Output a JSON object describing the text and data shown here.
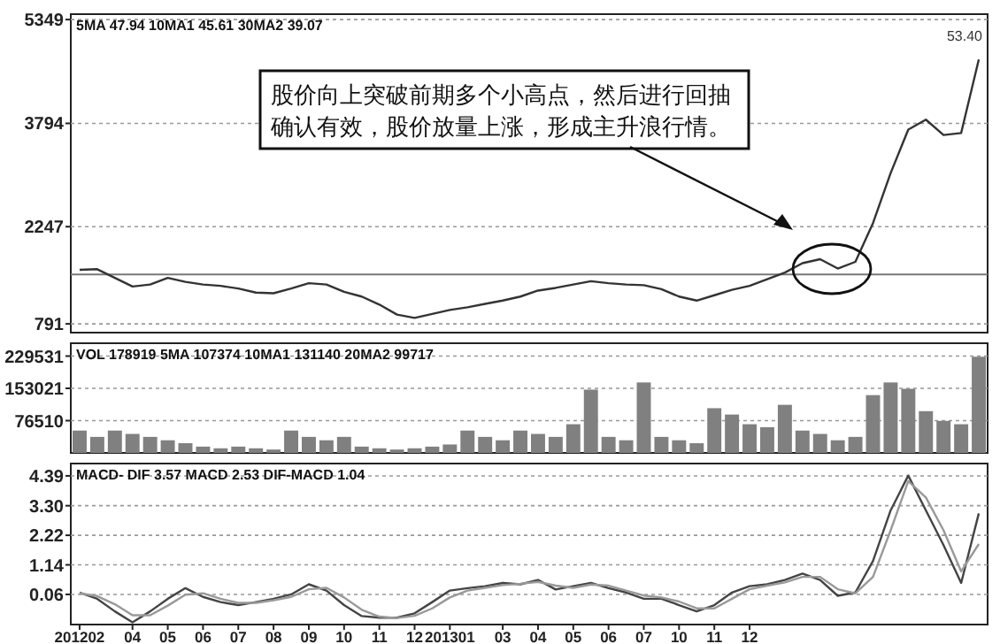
{
  "chart_data": [
    {
      "type": "line",
      "subtitle": "5MA 47.94  10MA1 45.61  30MA2 39.07",
      "categories": [
        null,
        null,
        null,
        null,
        null,
        null,
        null,
        null,
        null,
        null,
        null,
        null,
        null,
        null,
        null,
        null,
        null,
        null,
        null,
        null,
        null,
        null,
        null,
        null,
        null,
        null,
        null,
        null,
        null,
        null,
        null,
        null,
        null,
        null,
        null,
        null,
        null,
        null,
        null,
        null,
        null,
        null,
        null,
        null,
        null,
        null,
        null,
        null,
        null,
        null,
        null,
        null
      ],
      "series": [
        {
          "color": "#333333",
          "values": [
            1600,
            1610,
            1480,
            1350,
            1380,
            1480,
            1420,
            1380,
            1360,
            1320,
            1260,
            1250,
            1320,
            1400,
            1380,
            1270,
            1200,
            1080,
            930,
            880,
            940,
            1000,
            1040,
            1090,
            1140,
            1200,
            1290,
            1330,
            1380,
            1430,
            1400,
            1380,
            1370,
            1310,
            1200,
            1140,
            1220,
            1300,
            1360,
            1460,
            1560,
            1700,
            1760,
            1620,
            1720,
            2300,
            3050,
            3700,
            3850,
            3620,
            3650,
            4750
          ]
        }
      ],
      "ylim": [
        660,
        5430
      ],
      "yticks": [
        791,
        2247,
        3794,
        5349
      ],
      "grid": "y",
      "line_style": "solid",
      "tick_labels": "y",
      "ref_lines": [
        {
          "axis": "y",
          "value": 1530,
          "color": "#777777"
        }
      ],
      "annotations": [
        "股价向上突破前期多个小高点，然后进行回抽确认有效，股价放量上涨，形成主升浪行情。",
        "53.40"
      ]
    },
    {
      "type": "bar",
      "subtitle": "VOL 178919  5MA 107374  10MA1 131140  20MA2 99717",
      "categories": [
        null,
        null,
        null,
        null,
        null,
        null,
        null,
        null,
        null,
        null,
        null,
        null,
        null,
        null,
        null,
        null,
        null,
        null,
        null,
        null,
        null,
        null,
        null,
        null,
        null,
        null,
        null,
        null,
        null,
        null,
        null,
        null,
        null,
        null,
        null,
        null,
        null,
        null,
        null,
        null,
        null,
        null,
        null,
        null,
        null,
        null,
        null,
        null,
        null,
        null,
        null,
        null
      ],
      "series": [
        {
          "color": "#808080",
          "values": [
            53000,
            38000,
            53000,
            45000,
            38000,
            30000,
            23000,
            15000,
            11000,
            15000,
            11000,
            8000,
            53000,
            38000,
            30000,
            38000,
            15000,
            11000,
            8000,
            11000,
            15000,
            20000,
            53000,
            38000,
            30000,
            53000,
            45000,
            38000,
            68000,
            150000,
            38000,
            30000,
            167000,
            38000,
            30000,
            23000,
            106000,
            91000,
            68000,
            61000,
            114000,
            53000,
            45000,
            30000,
            38000,
            137000,
            167000,
            152000,
            99000,
            76000,
            68000,
            228000
          ]
        }
      ],
      "ylim": [
        0,
        260000
      ],
      "yticks": [
        76510,
        153021,
        229531
      ],
      "grid": "y",
      "tick_labels": "y"
    },
    {
      "type": "line",
      "subtitle": "MACD- DIF 3.57  MACD 2.53  DIF-MACD 1.04",
      "categories": [
        "201202",
        null,
        null,
        "04",
        null,
        "05",
        null,
        "06",
        null,
        "07",
        null,
        "08",
        null,
        "09",
        null,
        "10",
        null,
        "11",
        null,
        "12",
        null,
        "201301",
        null,
        null,
        "03",
        null,
        "04",
        null,
        "05",
        null,
        "06",
        null,
        "07",
        null,
        "10",
        null,
        "11",
        null,
        "12",
        null,
        null,
        null,
        null,
        null,
        null,
        null,
        null,
        null,
        null,
        null,
        null,
        null
      ],
      "series": [
        {
          "color": "#444444",
          "values": [
            0.13,
            -0.1,
            -0.56,
            -0.96,
            -0.56,
            -0.1,
            0.29,
            -0.03,
            -0.22,
            -0.33,
            -0.22,
            -0.1,
            0.06,
            0.43,
            0.2,
            -0.33,
            -0.73,
            -0.79,
            -0.79,
            -0.63,
            -0.22,
            0.2,
            0.29,
            0.36,
            0.48,
            0.43,
            0.59,
            0.24,
            0.36,
            0.48,
            0.29,
            0.13,
            -0.1,
            -0.1,
            -0.33,
            -0.56,
            -0.33,
            0.13,
            0.36,
            0.43,
            0.59,
            0.82,
            0.59,
            0.01,
            0.13,
            1.28,
            3.13,
            4.4,
            3.13,
            1.86,
            0.48,
            3.02
          ]
        },
        {
          "color": "#999999",
          "values": [
            0.1,
            0.0,
            -0.3,
            -0.7,
            -0.7,
            -0.35,
            0.05,
            0.1,
            -0.1,
            -0.25,
            -0.25,
            -0.15,
            -0.03,
            0.25,
            0.3,
            -0.05,
            -0.5,
            -0.75,
            -0.8,
            -0.72,
            -0.45,
            -0.05,
            0.2,
            0.3,
            0.4,
            0.45,
            0.52,
            0.38,
            0.3,
            0.42,
            0.38,
            0.2,
            0.02,
            -0.05,
            -0.2,
            -0.45,
            -0.45,
            -0.1,
            0.25,
            0.38,
            0.5,
            0.7,
            0.7,
            0.25,
            0.1,
            0.7,
            2.4,
            4.2,
            3.6,
            2.4,
            0.9,
            1.9
          ]
        }
      ],
      "ylim": [
        -1.04,
        4.84
      ],
      "yticks": [
        0.06,
        1.14,
        2.22,
        {
          "value": 3.3,
          "label": "3.30"
        },
        4.39
      ],
      "grid": "y",
      "line_style": "solid"
    }
  ]
}
